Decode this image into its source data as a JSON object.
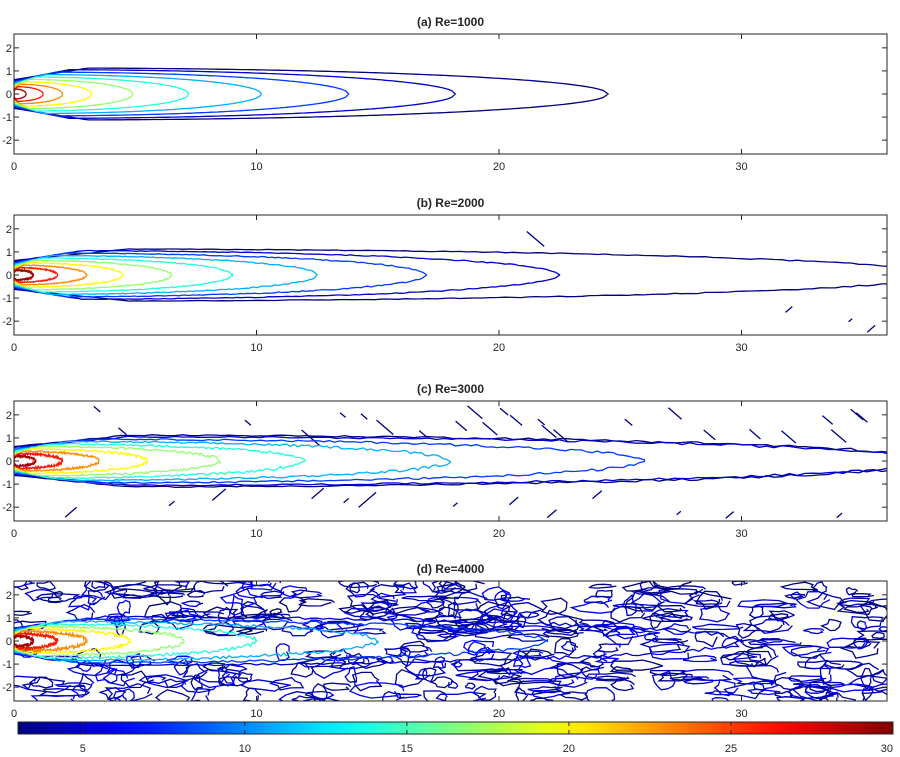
{
  "chart_data": [
    {
      "type": "contour",
      "title": "(a) Re=1000",
      "xlim": [
        0,
        36
      ],
      "ylim": [
        -2.6,
        2.6
      ],
      "xticks": [
        0,
        10,
        20,
        30
      ],
      "yticks": [
        -2,
        -1,
        0,
        1,
        2
      ],
      "turbulence": 0,
      "specks": 0,
      "background_noise": 0,
      "series": [
        {
          "level": 3,
          "length": 24.5
        },
        {
          "level": 5,
          "length": 18.2
        },
        {
          "level": 8,
          "length": 13.8
        },
        {
          "level": 11,
          "length": 10.2
        },
        {
          "level": 14,
          "length": 7.2
        },
        {
          "level": 17,
          "length": 4.9
        },
        {
          "level": 20,
          "length": 3.2
        },
        {
          "level": 23,
          "length": 2.0
        },
        {
          "level": 26,
          "length": 1.2
        },
        {
          "level": 29,
          "length": 0.5
        }
      ]
    },
    {
      "type": "contour",
      "title": "(b) Re=2000",
      "xlim": [
        0,
        36
      ],
      "ylim": [
        -2.6,
        2.6
      ],
      "xticks": [
        0,
        10,
        20,
        30
      ],
      "yticks": [
        -2,
        -1,
        0,
        1,
        2
      ],
      "turbulence": 0.35,
      "specks": 4,
      "background_noise": 0,
      "series": [
        {
          "level": 3,
          "length": 38
        },
        {
          "level": 5,
          "length": 22.5
        },
        {
          "level": 8,
          "length": 17
        },
        {
          "level": 11,
          "length": 12.5
        },
        {
          "level": 14,
          "length": 9
        },
        {
          "level": 17,
          "length": 6.5
        },
        {
          "level": 20,
          "length": 4.5
        },
        {
          "level": 23,
          "length": 3
        },
        {
          "level": 26,
          "length": 1.8
        },
        {
          "level": 29,
          "length": 0.8
        }
      ]
    },
    {
      "type": "contour",
      "title": "(c) Re=3000",
      "xlim": [
        0,
        36
      ],
      "ylim": [
        -2.6,
        2.6
      ],
      "xticks": [
        0,
        10,
        20,
        30
      ],
      "yticks": [
        -2,
        -1,
        0,
        1,
        2
      ],
      "turbulence": 0.8,
      "specks": 38,
      "background_noise": 0,
      "series": [
        {
          "level": 3,
          "length": 38
        },
        {
          "level": 5,
          "length": 38
        },
        {
          "level": 8,
          "length": 26
        },
        {
          "level": 11,
          "length": 18
        },
        {
          "level": 14,
          "length": 12
        },
        {
          "level": 17,
          "length": 8.5
        },
        {
          "level": 20,
          "length": 5.5
        },
        {
          "level": 23,
          "length": 3.5
        },
        {
          "level": 26,
          "length": 2
        },
        {
          "level": 29,
          "length": 0.9
        }
      ]
    },
    {
      "type": "contour",
      "title": "(d) Re=4000",
      "xlim": [
        0,
        36
      ],
      "ylim": [
        -2.6,
        2.6
      ],
      "xticks": [
        0,
        10,
        20,
        30
      ],
      "yticks": [
        -2,
        -1,
        0,
        1,
        2
      ],
      "turbulence": 1.1,
      "specks": 0,
      "background_noise": 420,
      "series": [
        {
          "level": 5,
          "length": 30
        },
        {
          "level": 8,
          "length": 22
        },
        {
          "level": 11,
          "length": 15
        },
        {
          "level": 14,
          "length": 10
        },
        {
          "level": 17,
          "length": 7
        },
        {
          "level": 20,
          "length": 4.8
        },
        {
          "level": 23,
          "length": 3
        },
        {
          "level": 26,
          "length": 1.8
        },
        {
          "level": 29,
          "length": 0.8
        }
      ]
    }
  ],
  "colorbar": {
    "range": [
      3,
      30
    ],
    "ticks": [
      5,
      10,
      15,
      20,
      25,
      30
    ],
    "colormap": "jet"
  }
}
